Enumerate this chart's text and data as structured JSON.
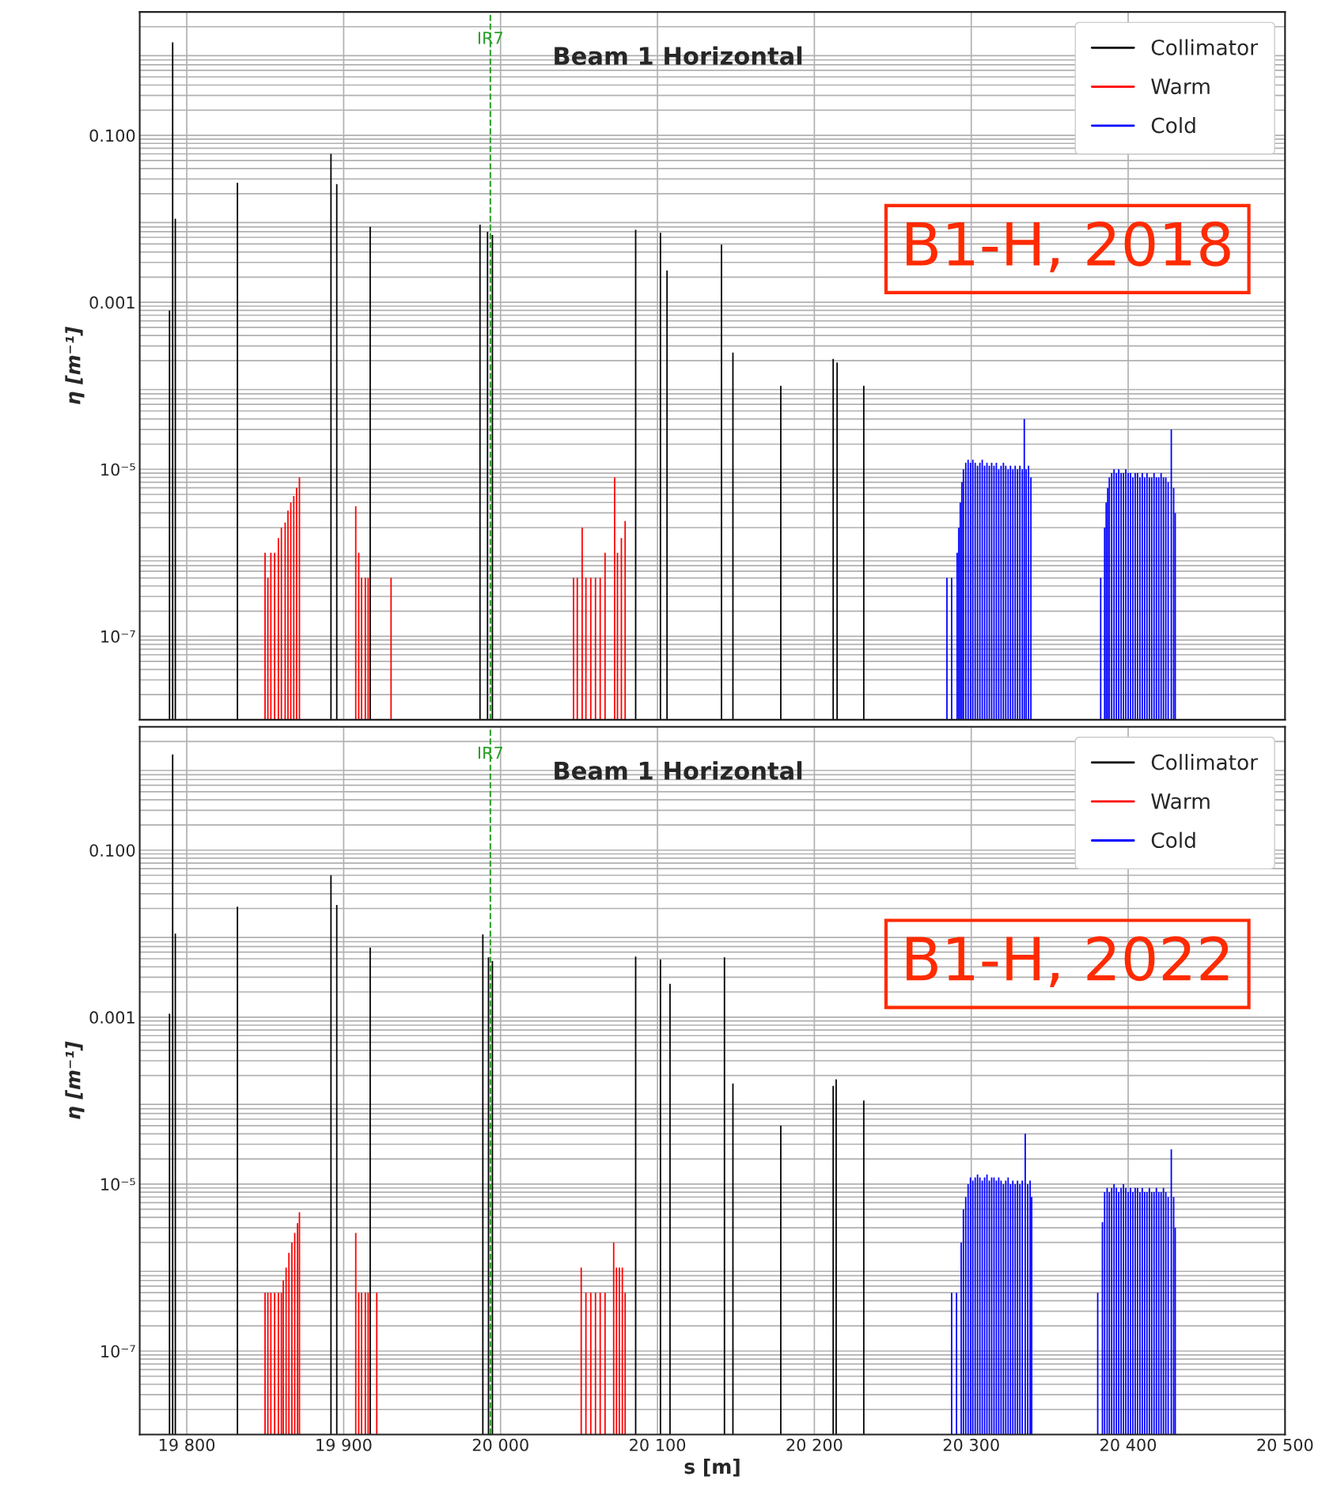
{
  "chart_data": [
    {
      "type": "bar",
      "title": "Beam 1 Horizontal",
      "ylabel": "η [m⁻¹]",
      "log": "y",
      "grid": true,
      "legend": "top right",
      "tick_labels": "y",
      "xlim": [
        19770,
        20500
      ],
      "xticks": [
        {
          "value": 19800,
          "label": null
        },
        {
          "value": 19900,
          "label": null
        },
        {
          "value": 20000,
          "label": null
        },
        {
          "value": 20100,
          "label": null
        },
        {
          "value": 20200,
          "label": null
        },
        {
          "value": 20300,
          "label": null
        },
        {
          "value": 20400,
          "label": null
        },
        {
          "value": 20500,
          "label": null
        }
      ],
      "ylim": [
        1e-08,
        3
      ],
      "yticks": [
        {
          "value": 0.1,
          "label": "0.100"
        },
        {
          "value": 0.001,
          "label": "0.001"
        },
        {
          "value": 1e-05,
          "label": "10⁻⁵"
        },
        {
          "value": 1e-07,
          "label": "10⁻⁷"
        }
      ],
      "ref_lines": [
        {
          "axis": "x",
          "value": 19993.5,
          "label": "IR7",
          "color": "#2ca02c",
          "line_style": "dashed"
        }
      ],
      "annotations": [
        "B1-H, 2018"
      ],
      "series": [
        {
          "name": "Collimator",
          "color": "#000000",
          "x": [
            19789,
            19791,
            19792.7,
            19832.3,
            19891.9,
            19895.6,
            19916.9,
            19986.9,
            19991.7,
            19994.8,
            20086.1,
            20101.9,
            20106.1,
            20140.8,
            20148.1,
            20178.6,
            20212,
            20214.5,
            20231.5
          ],
          "values": [
            0.0008,
            1.3,
            0.01,
            0.027,
            0.06,
            0.026,
            0.008,
            0.0085,
            0.007,
            0.0064,
            0.0074,
            0.0068,
            0.0024,
            0.0049,
            0.00025,
            0.0001,
            0.00021,
            0.00019,
            0.0001
          ]
        },
        {
          "name": "Warm",
          "color": "#ff0000",
          "x": [
            19849.9,
            19851.7,
            19853.6,
            19856,
            19858.4,
            19860.3,
            19862.7,
            19864.5,
            19866.3,
            19868.2,
            19870,
            19871.8,
            19907.7,
            19909.6,
            19911.4,
            19913.8,
            19915.6,
            19930.2,
            20046.5,
            20048.9,
            20052,
            20054.4,
            20057.5,
            20060.5,
            20063.5,
            20066.6,
            20072.7,
            20074.5,
            20077,
            20079.4
          ],
          "values": [
            1e-06,
            5e-07,
            1e-06,
            1e-06,
            1.5e-06,
            2e-06,
            2.3e-06,
            3.2e-06,
            4e-06,
            4.8e-06,
            6e-06,
            8e-06,
            3.6e-06,
            1e-06,
            5e-07,
            5e-07,
            5e-07,
            5e-07,
            5e-07,
            5e-07,
            2e-06,
            5e-07,
            5e-07,
            5e-07,
            5e-07,
            1e-06,
            8e-06,
            1e-06,
            1.5e-06,
            2.4e-06
          ]
        },
        {
          "name": "Cold",
          "color": "#0000ff",
          "x": [
            20284.5,
            20287.5,
            20291,
            20292,
            20293,
            20294,
            20295,
            20296.5,
            20298,
            20299.5,
            20301,
            20302.5,
            20304,
            20305.5,
            20307,
            20308.5,
            20310,
            20311.5,
            20313,
            20314.5,
            20316,
            20317.5,
            20319,
            20320.5,
            20322,
            20323.5,
            20325,
            20326.5,
            20328,
            20329.5,
            20331,
            20332.5,
            20333.8,
            20335,
            20336.5,
            20338,
            20382.5,
            20385,
            20386,
            20387,
            20388,
            20389.5,
            20391,
            20392.5,
            20394,
            20395.5,
            20397,
            20398.5,
            20400,
            20401.5,
            20403,
            20404.5,
            20406,
            20407.5,
            20409,
            20410.5,
            20412,
            20413.5,
            20415,
            20416.5,
            20418,
            20419.5,
            20421,
            20422.5,
            20424,
            20425.5,
            20427.5,
            20429,
            20430
          ],
          "values": [
            5e-07,
            5e-07,
            1e-06,
            2e-06,
            4e-06,
            7e-06,
            1e-05,
            1.2e-05,
            1.3e-05,
            1.2e-05,
            1.3e-05,
            1.2e-05,
            1.1e-05,
            1.2e-05,
            1.3e-05,
            1.1e-05,
            1.2e-05,
            1.1e-05,
            1.2e-05,
            1.1e-05,
            1.2e-05,
            1e-05,
            1.1e-05,
            1.2e-05,
            1.1e-05,
            1e-05,
            1.1e-05,
            1e-05,
            1.1e-05,
            1e-05,
            1.1e-05,
            1e-05,
            4e-05,
            1e-05,
            1.1e-05,
            8e-06,
            5e-07,
            2e-06,
            4e-06,
            6e-06,
            8e-06,
            9e-06,
            1e-05,
            9e-06,
            1e-05,
            9e-06,
            9e-06,
            1e-05,
            9e-06,
            9e-06,
            8e-06,
            9e-06,
            9e-06,
            8e-06,
            9e-06,
            8e-06,
            9e-06,
            8e-06,
            8e-06,
            9e-06,
            8e-06,
            8e-06,
            9e-06,
            8e-06,
            8e-06,
            7e-06,
            3e-05,
            6e-06,
            3e-06
          ]
        }
      ]
    },
    {
      "type": "bar",
      "title": "Beam 1 Horizontal",
      "xlabel": "s [m]",
      "ylabel": "η [m⁻¹]",
      "log": "y",
      "grid": true,
      "legend": "top right",
      "xlim": [
        19770,
        20500
      ],
      "xticks": [
        {
          "value": 19800,
          "label": "19 800"
        },
        {
          "value": 19900,
          "label": "19 900"
        },
        {
          "value": 20000,
          "label": "20 000"
        },
        {
          "value": 20100,
          "label": "20 100"
        },
        {
          "value": 20200,
          "label": "20 200"
        },
        {
          "value": 20300,
          "label": "20 300"
        },
        {
          "value": 20400,
          "label": "20 400"
        },
        {
          "value": 20500,
          "label": "20 500"
        }
      ],
      "ylim": [
        1e-08,
        3
      ],
      "yticks": [
        {
          "value": 0.1,
          "label": "0.100"
        },
        {
          "value": 0.001,
          "label": "0.001"
        },
        {
          "value": 1e-05,
          "label": "10⁻⁵"
        },
        {
          "value": 1e-07,
          "label": "10⁻⁷"
        }
      ],
      "ref_lines": [
        {
          "axis": "x",
          "value": 19993.5,
          "label": "IR7",
          "color": "#2ca02c",
          "line_style": "dashed"
        }
      ],
      "annotations": [
        "B1-H, 2022"
      ],
      "series": [
        {
          "name": "Collimator",
          "color": "#000000",
          "x": [
            19789,
            19791,
            19792.7,
            19832.3,
            19891.9,
            19895.6,
            19916.9,
            19988.7,
            19992.3,
            19994.8,
            20086.1,
            20101.9,
            20108,
            20142.7,
            20148.1,
            20178.6,
            20212,
            20213.9,
            20231.5
          ],
          "values": [
            0.0011,
            1.4,
            0.01,
            0.021,
            0.05,
            0.022,
            0.0068,
            0.0098,
            0.0052,
            0.0047,
            0.0053,
            0.0049,
            0.0025,
            0.0052,
            0.00016,
            5e-05,
            0.00015,
            0.00018,
            0.0001
          ]
        },
        {
          "name": "Warm",
          "color": "#ff0000",
          "x": [
            19849.9,
            19851.7,
            19853.6,
            19856,
            19858.4,
            19860.3,
            19861.5,
            19863.3,
            19865.1,
            19867,
            19868.8,
            19870.6,
            19871.8,
            19907.7,
            19909.6,
            19911.4,
            19913.8,
            19915.6,
            19921.1,
            20051.4,
            20054.4,
            20057.5,
            20060.5,
            20063.5,
            20066.6,
            20072.1,
            20073.9,
            20075.7,
            20077.6,
            20079.4
          ],
          "values": [
            5e-07,
            5e-07,
            5e-07,
            5e-07,
            5e-07,
            5e-07,
            7e-07,
            1e-06,
            1.5e-06,
            2e-06,
            2.6e-06,
            3.4e-06,
            4.6e-06,
            2.6e-06,
            5e-07,
            5e-07,
            5e-07,
            5e-07,
            5e-07,
            1e-06,
            5e-07,
            5e-07,
            5e-07,
            5e-07,
            5e-07,
            2e-06,
            1e-06,
            1e-06,
            1e-06,
            5e-07
          ]
        },
        {
          "name": "Cold",
          "color": "#0000ff",
          "x": [
            20287.5,
            20290.6,
            20293.6,
            20295,
            20296.5,
            20298,
            20299.5,
            20301,
            20302.5,
            20304,
            20305.5,
            20307,
            20308.5,
            20310,
            20311.5,
            20313,
            20314.5,
            20316,
            20317.5,
            20319,
            20320.5,
            20322,
            20323.5,
            20325,
            20326.5,
            20328,
            20329.5,
            20331,
            20332.5,
            20334.4,
            20336,
            20337.5,
            20338.5,
            20380.6,
            20383.6,
            20385,
            20386.6,
            20388,
            20389.5,
            20391,
            20392.5,
            20394,
            20395.5,
            20397,
            20398.5,
            20400,
            20401.5,
            20403,
            20404.5,
            20406,
            20407.5,
            20409,
            20410.5,
            20412,
            20413.5,
            20415,
            20416.5,
            20418,
            20419.5,
            20421,
            20422.5,
            20424,
            20425.5,
            20427.5,
            20429,
            20430
          ],
          "values": [
            5e-07,
            5e-07,
            2e-06,
            5e-06,
            7e-06,
            1e-05,
            1.2e-05,
            1.1e-05,
            1.2e-05,
            1.3e-05,
            1.2e-05,
            1.1e-05,
            1.2e-05,
            1.3e-05,
            1.1e-05,
            1.2e-05,
            1.2e-05,
            1.1e-05,
            1.2e-05,
            1.1e-05,
            1e-05,
            1.1e-05,
            1.2e-05,
            1e-05,
            1.1e-05,
            1e-05,
            1.1e-05,
            1e-05,
            1.1e-05,
            4e-05,
            1e-05,
            1.1e-05,
            7e-06,
            5e-07,
            3.5e-06,
            8e-06,
            9e-06,
            8e-06,
            9e-06,
            1e-05,
            9e-06,
            8e-06,
            9e-06,
            1e-05,
            9e-06,
            8e-06,
            9e-06,
            8e-06,
            9e-06,
            9e-06,
            8e-06,
            9e-06,
            8e-06,
            8e-06,
            9e-06,
            8e-06,
            8e-06,
            9e-06,
            8e-06,
            8e-06,
            9e-06,
            8e-06,
            7e-06,
            2.6e-05,
            7e-06,
            3e-06
          ]
        }
      ]
    }
  ]
}
